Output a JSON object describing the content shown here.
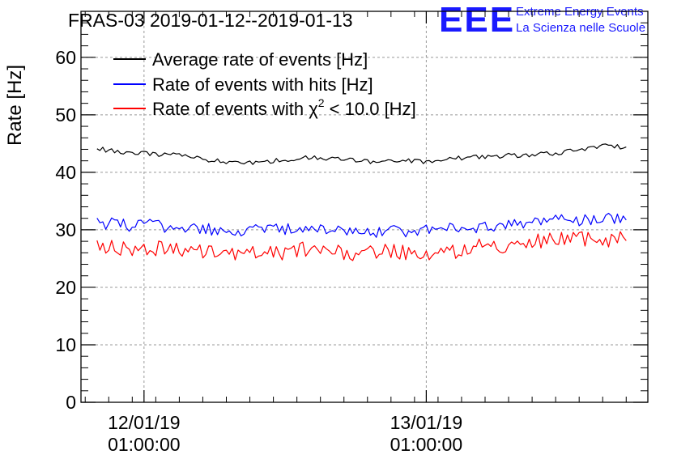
{
  "colors": {
    "average": "#000000",
    "hits": "#0000ff",
    "chi2": "#ff0000",
    "grid": "#999999",
    "logo": "#1a1aff"
  },
  "logo": {
    "mark": "EEE",
    "line1": "Extreme Energy Events",
    "line2": "La Scienza nelle Scuole"
  },
  "chart_data": {
    "type": "line",
    "title": "FRAS-03 2019-01-12--2019-01-13",
    "ylabel": "Rate [Hz]",
    "xlabel": "",
    "ylim": [
      0,
      68
    ],
    "yticks": [
      0,
      10,
      20,
      30,
      40,
      50,
      60
    ],
    "ytick_labels": [
      "0",
      "10",
      "20",
      "30",
      "40",
      "50",
      "60"
    ],
    "x_unit": "hours since 2019-01-12 00:00",
    "xlim": [
      -4.36,
      43.84
    ],
    "x_major_ticks": [
      {
        "x": 1,
        "date": "12/01/19",
        "time": "01:00:00"
      },
      {
        "x": 25,
        "date": "13/01/19",
        "time": "01:00:00"
      }
    ],
    "grid": true,
    "legend": {
      "position": "top-left",
      "entries": [
        {
          "series": "average",
          "prefix": "Average rate of events [Hz]",
          "sup": "",
          "suffix": ""
        },
        {
          "series": "hits",
          "prefix": "Rate of events with hits [Hz]",
          "sup": "",
          "suffix": ""
        },
        {
          "series": "chi2",
          "prefix": "Rate of events with χ",
          "sup": "2",
          "suffix": " < 10.0 [Hz]"
        }
      ]
    },
    "series": [
      {
        "key": "average",
        "name": "Average rate of events [Hz]",
        "x": [
          -3,
          -2,
          -1,
          0,
          1,
          2,
          3,
          4,
          5,
          6,
          7,
          8,
          9,
          10,
          11,
          12,
          13,
          14,
          15,
          16,
          17,
          18,
          19,
          20,
          21,
          22,
          23,
          24,
          25,
          26,
          27,
          28,
          29,
          30,
          31,
          32,
          33,
          34,
          35,
          36,
          37,
          38,
          39,
          40,
          41,
          42
        ],
        "y": [
          44.2,
          43.8,
          43.6,
          43.5,
          43.3,
          43.2,
          43.0,
          43.1,
          42.7,
          42.3,
          42.0,
          41.8,
          41.6,
          41.7,
          41.8,
          42.0,
          42.2,
          42.4,
          42.5,
          42.6,
          42.4,
          42.2,
          42.0,
          41.8,
          41.7,
          41.9,
          42.0,
          41.9,
          41.8,
          42.0,
          42.3,
          42.5,
          42.6,
          42.7,
          42.8,
          43.0,
          42.9,
          43.1,
          43.2,
          43.3,
          43.6,
          44.0,
          44.3,
          44.6,
          44.5,
          44.4
        ],
        "noise": 0.4
      },
      {
        "key": "hits",
        "name": "Rate of events with hits [Hz]",
        "x": [
          -3,
          -2,
          -1,
          0,
          1,
          2,
          3,
          4,
          5,
          6,
          7,
          8,
          9,
          10,
          11,
          12,
          13,
          14,
          15,
          16,
          17,
          18,
          19,
          20,
          21,
          22,
          23,
          24,
          25,
          26,
          27,
          28,
          29,
          30,
          31,
          32,
          33,
          34,
          35,
          36,
          37,
          38,
          39,
          40,
          41,
          42
        ],
        "y": [
          31.3,
          31.0,
          30.9,
          30.8,
          30.8,
          30.7,
          30.6,
          30.6,
          30.5,
          30.3,
          30.1,
          30.0,
          29.9,
          29.8,
          29.9,
          30.0,
          30.0,
          30.1,
          30.1,
          30.1,
          30.0,
          30.0,
          29.9,
          29.8,
          29.7,
          29.8,
          29.8,
          29.9,
          29.8,
          29.9,
          30.1,
          30.3,
          30.4,
          30.5,
          30.6,
          30.7,
          30.9,
          31.2,
          31.5,
          31.5,
          31.6,
          31.7,
          31.8,
          31.8,
          31.9,
          31.7
        ],
        "noise": 1.1
      },
      {
        "key": "chi2",
        "name": "Rate of events with χ2 < 10.0 [Hz]",
        "x": [
          -3,
          -2,
          -1,
          0,
          1,
          2,
          3,
          4,
          5,
          6,
          7,
          8,
          9,
          10,
          11,
          12,
          13,
          14,
          15,
          16,
          17,
          18,
          19,
          20,
          21,
          22,
          23,
          24,
          25,
          26,
          27,
          28,
          29,
          30,
          31,
          32,
          33,
          34,
          35,
          36,
          37,
          38,
          39,
          40,
          41,
          42
        ],
        "y": [
          27.4,
          27.0,
          26.9,
          26.8,
          26.7,
          26.6,
          26.6,
          26.5,
          26.4,
          26.2,
          26.0,
          25.9,
          25.8,
          25.8,
          25.9,
          26.1,
          26.3,
          26.5,
          26.5,
          26.5,
          26.4,
          26.2,
          26.1,
          26.0,
          26.0,
          26.2,
          26.3,
          26.2,
          26.1,
          26.2,
          26.4,
          26.6,
          26.8,
          27.0,
          27.2,
          27.4,
          27.6,
          27.8,
          28.0,
          28.1,
          28.2,
          28.3,
          28.4,
          28.4,
          28.3,
          28.1
        ],
        "noise": 1.5
      }
    ]
  }
}
